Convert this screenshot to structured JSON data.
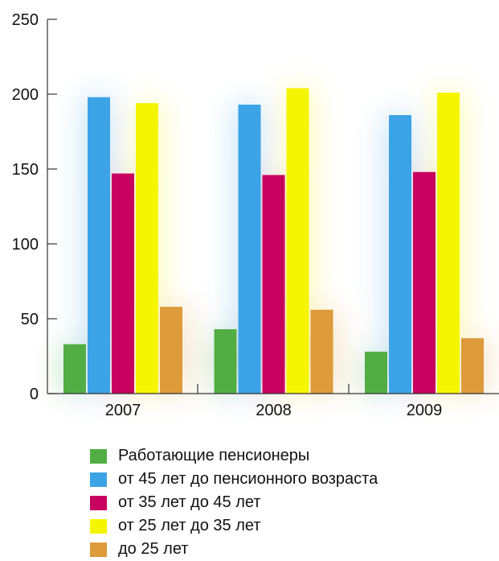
{
  "chart_data": {
    "type": "bar",
    "categories": [
      "2007",
      "2008",
      "2009"
    ],
    "series": [
      {
        "name": "Работающие пенсионеры",
        "color": "#52ae44",
        "values": [
          33,
          43,
          28
        ]
      },
      {
        "name": "от 45 лет до пенсионного возраста",
        "color": "#3ba3e6",
        "values": [
          198,
          193,
          186
        ]
      },
      {
        "name": "от 35 лет до 45 лет",
        "color": "#c8005f",
        "values": [
          147,
          146,
          148
        ]
      },
      {
        "name": "от 25 лет до 35 лет",
        "color": "#f5f500",
        "values": [
          194,
          204,
          201
        ]
      },
      {
        "name": "до 25 лет",
        "color": "#dd9b3c",
        "values": [
          58,
          56,
          37
        ]
      }
    ],
    "ylim": [
      0,
      250
    ],
    "yticks": [
      "0",
      "50",
      "100",
      "150",
      "200",
      "250"
    ],
    "legend_position": "bottom",
    "grid": false
  }
}
